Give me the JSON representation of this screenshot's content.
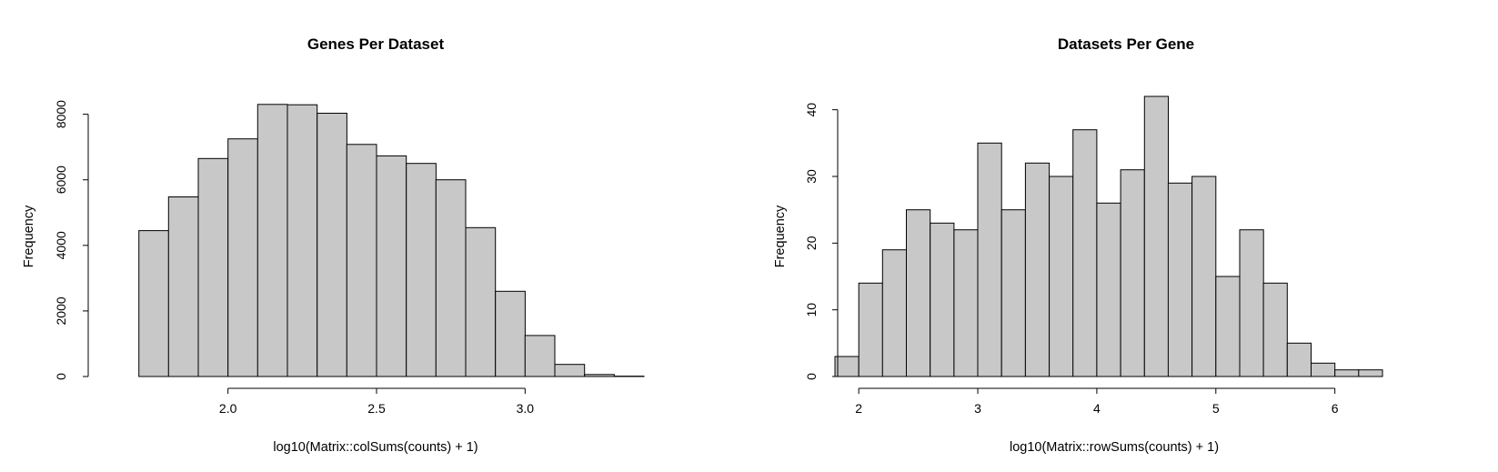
{
  "chart_data": [
    {
      "type": "bar",
      "title": "Genes Per Dataset",
      "xlabel": "log10(Matrix::colSums(counts) + 1)",
      "ylabel": "Frequency",
      "bin_edges": [
        1.6,
        1.7,
        1.8,
        1.9,
        2.0,
        2.1,
        2.2,
        2.3,
        2.4,
        2.5,
        2.6,
        2.7,
        2.8,
        2.9,
        3.0,
        3.1,
        3.2,
        3.3,
        3.4
      ],
      "values": [
        0,
        4450,
        5480,
        6650,
        7250,
        8300,
        8290,
        8030,
        7080,
        6730,
        6500,
        6000,
        4540,
        2600,
        1250,
        370,
        60,
        10
      ],
      "xticks": [
        2.0,
        2.5,
        3.0
      ],
      "xtick_labels": [
        "2.0",
        "2.5",
        "3.0"
      ],
      "yticks": [
        0,
        2000,
        4000,
        6000,
        8000
      ],
      "ytick_labels": [
        "0",
        "2000",
        "4000",
        "6000",
        "8000"
      ],
      "xlim": [
        1.6,
        3.4
      ],
      "ylim": [
        0,
        8600
      ],
      "grid": false,
      "bar_color": "#c8c8c8"
    },
    {
      "type": "bar",
      "title": "Datasets Per Gene",
      "xlabel": "log10(Matrix::rowSums(counts) + 1)",
      "ylabel": "Frequency",
      "bin_edges": [
        1.8,
        2.0,
        2.2,
        2.4,
        2.6,
        2.8,
        3.0,
        3.2,
        3.4,
        3.6,
        3.8,
        4.0,
        4.2,
        4.4,
        4.6,
        4.8,
        5.0,
        5.2,
        5.4,
        5.6,
        5.8,
        6.0,
        6.2,
        6.4
      ],
      "values": [
        3,
        14,
        19,
        25,
        23,
        22,
        35,
        25,
        32,
        30,
        37,
        26,
        31,
        42,
        29,
        30,
        15,
        22,
        14,
        5,
        2,
        1,
        1
      ],
      "xticks": [
        2,
        3,
        4,
        5,
        6
      ],
      "xtick_labels": [
        "2",
        "3",
        "4",
        "5",
        "6"
      ],
      "yticks": [
        0,
        10,
        20,
        30,
        40
      ],
      "ytick_labels": [
        "0",
        "10",
        "20",
        "30",
        "40"
      ],
      "xlim": [
        1.8,
        6.4
      ],
      "ylim": [
        0,
        42
      ],
      "grid": false,
      "bar_color": "#c8c8c8"
    }
  ]
}
